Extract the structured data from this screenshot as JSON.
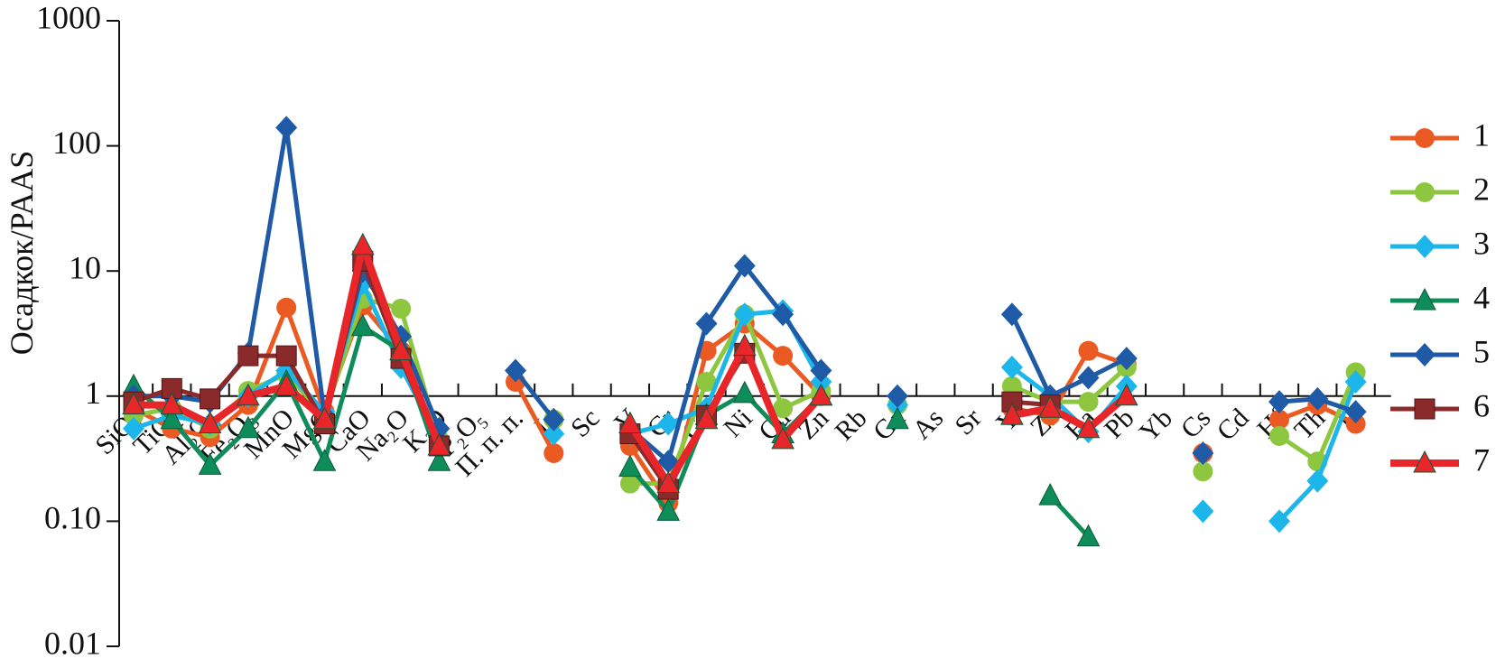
{
  "chart_data": {
    "type": "line",
    "y_label": "Осадкок/PAAS",
    "log_scale": true,
    "legend": "right",
    "categories": [
      "SiO₂",
      "TiO₂",
      "Al₂O₃",
      "Fe₂O₃",
      "MnO",
      "MgO",
      "CaO",
      "Na₂O",
      "K₂O",
      "P₂O₅",
      "П. п. п.",
      "Li",
      "Sc",
      "V",
      "Cr",
      "Co",
      "Ni",
      "Cu",
      "Zn",
      "Rb",
      "Ga",
      "As",
      "Sr",
      "Y",
      "Zr",
      "Ba",
      "Pb",
      "Yb",
      "Cs",
      "Cd",
      "Hf",
      "Th",
      "U"
    ],
    "ylim": [
      0.01,
      1000
    ],
    "yticks": [
      1000,
      100,
      10,
      1,
      {
        "value": 0.1,
        "label": "0.10"
      },
      0.01
    ],
    "series": [
      {
        "name": "1",
        "color": "#ec5a24",
        "marker": "circle",
        "values": [
          0.8,
          0.55,
          0.47,
          0.85,
          5.1,
          0.75,
          5.3,
          2.3,
          0.4,
          null,
          1.3,
          0.35,
          null,
          0.4,
          0.14,
          2.3,
          3.8,
          2.1,
          1.0,
          null,
          null,
          null,
          null,
          0.8,
          0.7,
          2.3,
          1.8,
          null,
          0.35,
          null,
          0.65,
          0.85,
          0.6
        ]
      },
      {
        "name": "2",
        "color": "#8dc63f",
        "marker": "circle",
        "values": [
          0.7,
          0.8,
          0.55,
          1.1,
          1.5,
          0.7,
          6,
          5,
          0.45,
          null,
          null,
          0.65,
          null,
          0.2,
          0.2,
          1.3,
          4.5,
          0.8,
          1.1,
          null,
          0.85,
          null,
          null,
          1.2,
          0.9,
          0.9,
          1.7,
          null,
          0.25,
          null,
          0.48,
          0.3,
          1.55
        ]
      },
      {
        "name": "3",
        "color": "#1cb6ea",
        "marker": "diamond",
        "values": [
          0.55,
          0.7,
          0.6,
          1.0,
          1.6,
          0.75,
          8,
          1.7,
          0.45,
          null,
          null,
          0.5,
          null,
          0.5,
          0.6,
          0.8,
          4.5,
          4.8,
          1.3,
          null,
          0.85,
          null,
          null,
          1.7,
          1.0,
          0.52,
          1.2,
          null,
          0.12,
          null,
          0.1,
          0.21,
          1.3
        ]
      },
      {
        "name": "4",
        "color": "#0e8c5a",
        "marker": "triangle",
        "values": [
          1.2,
          0.65,
          0.28,
          0.55,
          1.3,
          0.3,
          3.6,
          2.3,
          0.3,
          null,
          null,
          null,
          null,
          0.27,
          0.12,
          0.7,
          1.05,
          0.5,
          1.0,
          null,
          0.65,
          null,
          null,
          null,
          0.16,
          0.075,
          null,
          null,
          null,
          null,
          null,
          null,
          null
        ]
      },
      {
        "name": "5",
        "color": "#1f5aa6",
        "marker": "diamond",
        "values": [
          1.0,
          1.0,
          0.9,
          2.2,
          140,
          0.7,
          10,
          3,
          0.55,
          null,
          1.6,
          0.65,
          null,
          0.55,
          0.3,
          3.8,
          11,
          4.5,
          1.6,
          null,
          1.0,
          null,
          null,
          4.5,
          1.0,
          1.4,
          2.0,
          null,
          0.35,
          null,
          0.9,
          0.95,
          0.75
        ]
      },
      {
        "name": "6",
        "color": "#8b2a2a",
        "marker": "square",
        "values": [
          0.9,
          1.15,
          0.95,
          2.1,
          2.1,
          0.6,
          12,
          2.0,
          0.4,
          null,
          null,
          null,
          null,
          0.5,
          0.18,
          0.7,
          2.2,
          null,
          null,
          null,
          null,
          null,
          null,
          0.9,
          0.85,
          null,
          null,
          null,
          null,
          null,
          null,
          null,
          null
        ]
      },
      {
        "name": "7",
        "color": "#e8262a",
        "marker": "triangle",
        "values": [
          0.85,
          0.85,
          0.6,
          1.0,
          1.2,
          0.65,
          16,
          2.3,
          0.4,
          null,
          null,
          null,
          null,
          0.6,
          0.2,
          0.65,
          2.5,
          0.45,
          1.0,
          null,
          null,
          null,
          null,
          0.7,
          0.8,
          0.55,
          1.0,
          null,
          null,
          null,
          null,
          null,
          null
        ]
      }
    ]
  }
}
